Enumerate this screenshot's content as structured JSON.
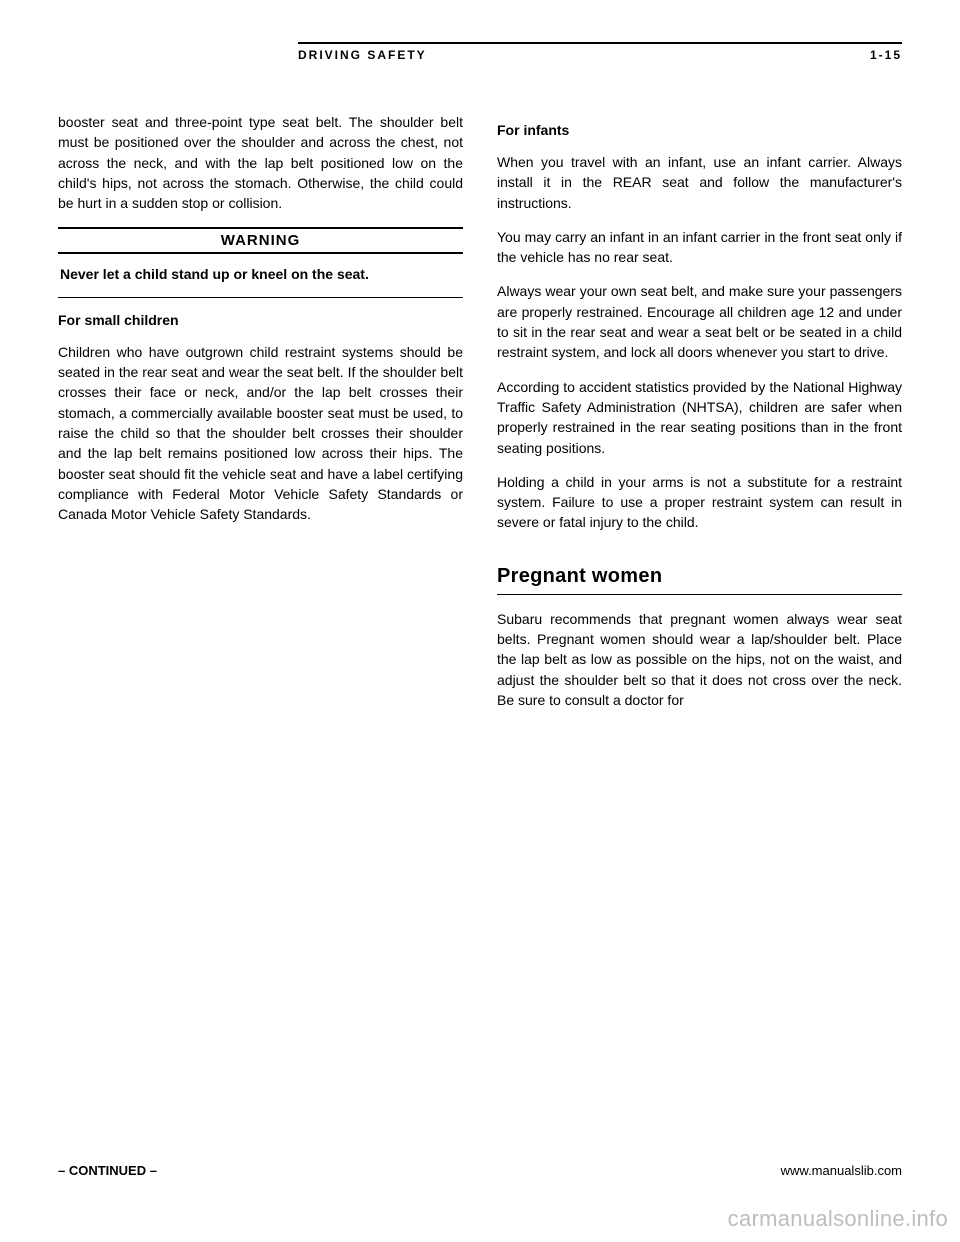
{
  "header": {
    "left": "DRIVING SAFETY",
    "right": "1-15"
  },
  "left_col": {
    "p1": "booster seat and three-point type seat belt. The shoulder belt must be positioned over the shoulder and across the chest, not across the neck, and with the lap belt positioned low on the child's hips, not across the stomach. Otherwise, the child could be hurt in a sudden stop or collision.",
    "subhead": "For small children",
    "p2": "Children who have outgrown child restraint systems should be seated in the rear seat and wear the seat belt. If the shoulder belt crosses their face or neck, and/or the lap belt crosses their stomach, a commercially available booster seat must be used, to raise the child so that the shoulder belt crosses their shoulder and the lap belt remains positioned low across their hips. The booster seat should fit the vehicle seat and have a label certifying compliance with Federal Motor Vehicle Safety Standards or Canada Motor Vehicle Safety Standards.",
    "warning_title": "WARNING",
    "warning_body": "Never let a child stand up or kneel on the seat."
  },
  "right_col": {
    "subhead1": "For infants",
    "p1": "When you travel with an infant, use an infant carrier. Always install it in the REAR seat and follow the manufacturer's instructions.",
    "p2": "You may carry an infant in an infant carrier in the front seat only if the vehicle has no rear seat.",
    "p3": "Always wear your own seat belt, and make sure your passengers are properly restrained. Encourage all children age 12 and under to sit in the rear seat and wear a seat belt or be seated in a child restraint system, and lock all doors whenever you start to drive.",
    "p4": "According to accident statistics provided by the National Highway Traffic Safety Administration (NHTSA), children are safer when properly restrained in the rear seating positions than in the front seating positions.",
    "p5": "Holding a child in your arms is not a substitute for a restraint system. Failure to use a proper restraint system can result in severe or fatal injury to the child.",
    "section_title": "Pregnant women",
    "p6": "Subaru recommends that pregnant women always wear seat belts. Pregnant women should wear a lap/shoulder belt. Place the lap belt as low as possible on the hips, not on the waist, and adjust the shoulder belt so that it does not cross over the neck. Be sure to consult a doctor for"
  },
  "footer": {
    "left": "– CONTINUED –",
    "right": "www.manualslib.com"
  },
  "watermark": "carmanualsonline.info",
  "colors": {
    "bg": "#ffffff",
    "text": "#000000",
    "watermark": "#bdbdbd"
  }
}
